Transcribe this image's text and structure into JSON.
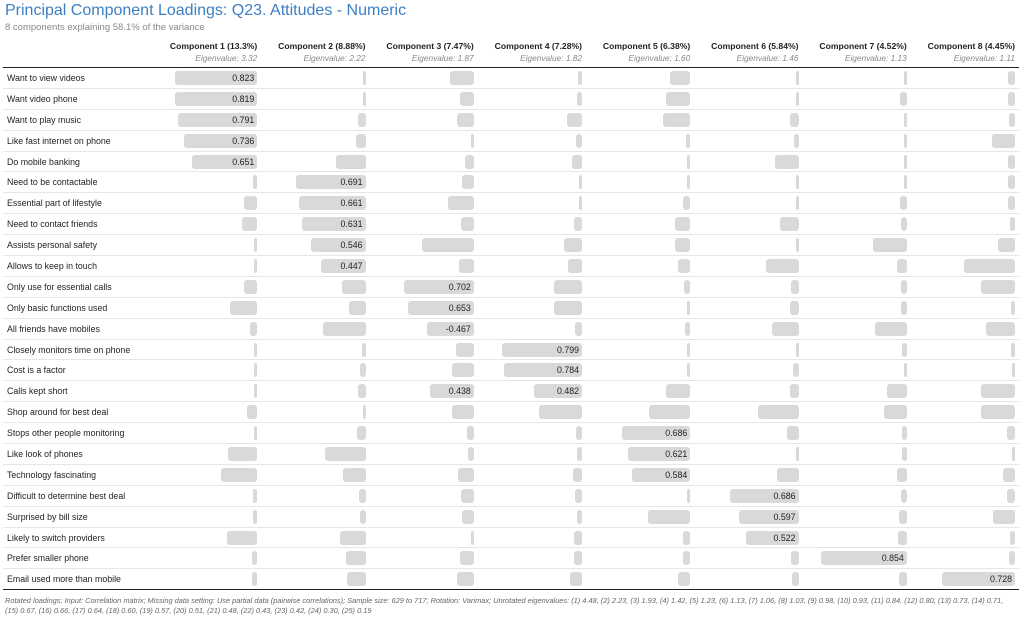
{
  "title": "Principal Component Loadings: Q23. Attitudes - Numeric",
  "subtitle": "8 components explaining 58.1% of the variance",
  "footnote": "Rotated loadings; Input: Correlation matrix; Missing data setting: Use partial data (pairwise correlations); Sample size: 629 to 717; Rotation: Varimax; Unrotated eigenvalues: (1) 4.48, (2) 2.23, (3) 1.93, (4) 1.42, (5) 1.23, (6) 1.13, (7) 1.06, (8) 1.03, (9) 0.98, (10) 0.93, (11) 0.84, (12) 0.80, (13) 0.73, (14) 0.71, (15) 0.67, (16) 0.66, (17) 0.64, (18) 0.60, (19) 0.57, (20) 0.51, (21) 0.48, (22) 0.43, (23) 0.42, (24) 0.30, (25) 0.19",
  "chart_data": {
    "type": "table",
    "columns": [
      {
        "label": "Component 1 (13.3%)",
        "eigenvalue": "Eigenvalue: 3.32"
      },
      {
        "label": "Component 2 (8.88%)",
        "eigenvalue": "Eigenvalue: 2.22"
      },
      {
        "label": "Component 3 (7.47%)",
        "eigenvalue": "Eigenvalue: 1.87"
      },
      {
        "label": "Component 4 (7.28%)",
        "eigenvalue": "Eigenvalue: 1.82"
      },
      {
        "label": "Component 5 (6.38%)",
        "eigenvalue": "Eigenvalue: 1.60"
      },
      {
        "label": "Component 6 (5.84%)",
        "eigenvalue": "Eigenvalue: 1.46"
      },
      {
        "label": "Component 7 (4.52%)",
        "eigenvalue": "Eigenvalue: 1.13"
      },
      {
        "label": "Component 8 (4.45%)",
        "eigenvalue": "Eigenvalue: 1.11"
      }
    ],
    "rows": [
      {
        "label": "Want to view videos",
        "loadings": [
          0.823,
          0.01,
          0.24,
          0.04,
          0.2,
          0.01,
          0.01,
          0.07
        ],
        "shown": [
          0.823,
          null,
          null,
          null,
          null,
          null,
          null,
          null
        ]
      },
      {
        "label": "Want video phone",
        "loadings": [
          0.819,
          0.01,
          0.14,
          0.05,
          0.24,
          0.01,
          0.07,
          0.07
        ],
        "shown": [
          0.819,
          null,
          null,
          null,
          null,
          null,
          null,
          null
        ]
      },
      {
        "label": "Want to play music",
        "loadings": [
          0.791,
          0.08,
          0.17,
          0.15,
          0.27,
          0.09,
          0.03,
          0.06
        ],
        "shown": [
          0.791,
          null,
          null,
          null,
          null,
          null,
          null,
          null
        ]
      },
      {
        "label": "Like fast internet on phone",
        "loadings": [
          0.736,
          0.1,
          0.01,
          0.06,
          0.04,
          0.05,
          0.01,
          0.23
        ],
        "shown": [
          0.736,
          null,
          null,
          null,
          null,
          null,
          null,
          null
        ]
      },
      {
        "label": "Do mobile banking",
        "loadings": [
          0.651,
          0.3,
          0.09,
          0.1,
          0.01,
          0.24,
          0.03,
          0.07
        ],
        "shown": [
          0.651,
          null,
          null,
          null,
          null,
          null,
          null,
          null
        ]
      },
      {
        "label": "Need to be contactable",
        "loadings": [
          0.04,
          0.691,
          0.12,
          0.01,
          0.03,
          0.01,
          0.01,
          0.07
        ],
        "shown": [
          null,
          0.691,
          null,
          null,
          null,
          null,
          null,
          null
        ]
      },
      {
        "label": "Essential part of lifestyle",
        "loadings": [
          0.13,
          0.661,
          0.26,
          0.01,
          0.07,
          0.01,
          0.07,
          0.07
        ],
        "shown": [
          null,
          0.661,
          null,
          null,
          null,
          null,
          null,
          null
        ]
      },
      {
        "label": "Need to contact friends",
        "loadings": [
          0.15,
          0.631,
          0.13,
          0.08,
          0.15,
          0.19,
          0.06,
          0.05
        ],
        "shown": [
          null,
          0.631,
          null,
          null,
          null,
          null,
          null,
          null
        ]
      },
      {
        "label": "Assists personal safety",
        "loadings": [
          0.01,
          0.546,
          0.52,
          0.18,
          0.15,
          0.01,
          0.34,
          0.17
        ],
        "shown": [
          null,
          0.546,
          null,
          null,
          null,
          null,
          null,
          null
        ]
      },
      {
        "label": "Allows to keep in touch",
        "loadings": [
          0.01,
          0.447,
          0.15,
          0.14,
          0.12,
          0.33,
          0.1,
          0.51
        ],
        "shown": [
          null,
          0.447,
          null,
          null,
          null,
          null,
          null,
          null
        ]
      },
      {
        "label": "Only use for essential calls",
        "loadings": [
          0.13,
          0.24,
          0.702,
          0.28,
          0.06,
          0.08,
          0.06,
          0.34
        ],
        "shown": [
          null,
          null,
          0.702,
          null,
          null,
          null,
          null,
          null
        ]
      },
      {
        "label": "Only basic functions used",
        "loadings": [
          0.27,
          0.17,
          0.653,
          0.28,
          0.03,
          0.09,
          0.06,
          0.04
        ],
        "shown": [
          null,
          null,
          0.653,
          null,
          null,
          null,
          null,
          null
        ]
      },
      {
        "label": "All friends have mobiles",
        "loadings": [
          0.07,
          0.43,
          -0.467,
          0.07,
          0.05,
          0.27,
          0.32,
          0.29
        ],
        "shown": [
          null,
          null,
          -0.467,
          null,
          null,
          null,
          null,
          null
        ]
      },
      {
        "label": "Closely monitors time on phone",
        "loadings": [
          0.02,
          0.04,
          0.18,
          0.799,
          0.03,
          0.01,
          0.05,
          0.04
        ],
        "shown": [
          null,
          null,
          null,
          0.799,
          null,
          null,
          null,
          null
        ]
      },
      {
        "label": "Cost is a factor",
        "loadings": [
          0.02,
          0.06,
          0.22,
          0.784,
          0.02,
          0.06,
          0.01,
          0.03
        ],
        "shown": [
          null,
          null,
          null,
          0.784,
          null,
          null,
          null,
          null
        ]
      },
      {
        "label": "Calls kept short",
        "loadings": [
          0.01,
          0.08,
          0.438,
          0.482,
          0.24,
          0.09,
          0.2,
          0.34
        ],
        "shown": [
          null,
          null,
          0.438,
          0.482,
          null,
          null,
          null,
          null
        ]
      },
      {
        "label": "Shop around for best deal",
        "loadings": [
          0.1,
          0.02,
          0.22,
          0.43,
          0.41,
          0.41,
          0.23,
          0.34
        ],
        "shown": [
          null,
          null,
          null,
          null,
          null,
          null,
          null,
          null
        ]
      },
      {
        "label": "Stops other people monitoring",
        "loadings": [
          0.02,
          0.09,
          0.07,
          0.06,
          0.686,
          0.12,
          0.05,
          0.08
        ],
        "shown": [
          null,
          null,
          null,
          null,
          0.686,
          null,
          null,
          null
        ]
      },
      {
        "label": "Like look of phones",
        "loadings": [
          0.29,
          0.41,
          0.06,
          0.05,
          0.621,
          0.02,
          0.05,
          0.01
        ],
        "shown": [
          null,
          null,
          null,
          null,
          0.621,
          null,
          null,
          null
        ]
      },
      {
        "label": "Technology fascinating",
        "loadings": [
          0.36,
          0.23,
          0.16,
          0.09,
          0.584,
          0.22,
          0.1,
          0.12
        ],
        "shown": [
          null,
          null,
          null,
          null,
          0.584,
          null,
          null,
          null
        ]
      },
      {
        "label": "Difficult to determine best deal",
        "loadings": [
          0.04,
          0.07,
          0.13,
          0.07,
          0.03,
          0.686,
          0.06,
          0.08
        ],
        "shown": [
          null,
          null,
          null,
          null,
          null,
          0.686,
          null,
          null
        ]
      },
      {
        "label": "Surprised by bill size",
        "loadings": [
          0.04,
          0.06,
          0.12,
          0.05,
          0.42,
          0.597,
          0.08,
          0.22
        ],
        "shown": [
          null,
          null,
          null,
          null,
          null,
          0.597,
          null,
          null
        ]
      },
      {
        "label": "Likely to switch providers",
        "loadings": [
          0.3,
          0.26,
          0.01,
          0.08,
          0.07,
          0.522,
          0.09,
          0.05
        ],
        "shown": [
          null,
          null,
          null,
          null,
          null,
          0.522,
          null,
          null
        ]
      },
      {
        "label": "Prefer smaller phone",
        "loadings": [
          0.05,
          0.2,
          0.14,
          0.08,
          0.07,
          0.08,
          0.854,
          0.06
        ],
        "shown": [
          null,
          null,
          null,
          null,
          null,
          null,
          0.854,
          null
        ]
      },
      {
        "label": "Email used more than mobile",
        "loadings": [
          0.05,
          0.19,
          0.17,
          0.12,
          0.12,
          0.07,
          0.08,
          0.728
        ],
        "shown": [
          null,
          null,
          null,
          null,
          null,
          null,
          null,
          0.728
        ]
      }
    ]
  }
}
